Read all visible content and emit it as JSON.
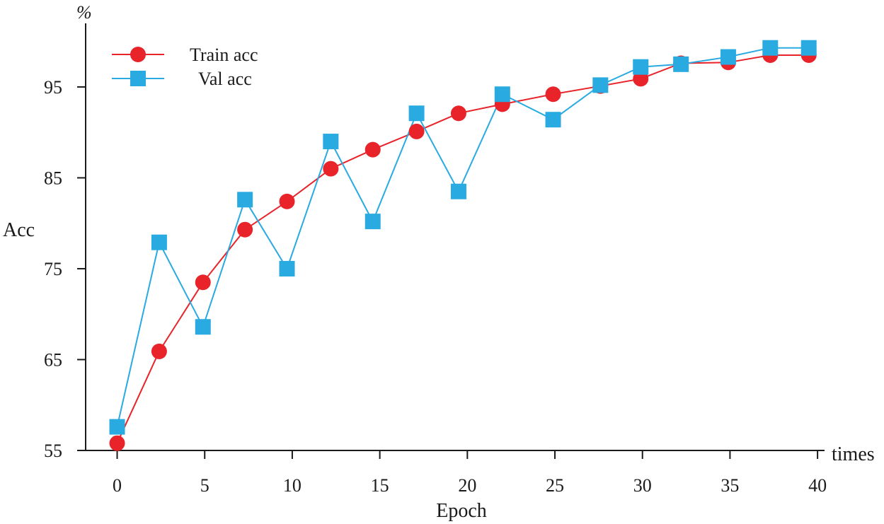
{
  "chart_data": {
    "type": "line",
    "title": "",
    "xlabel": "Epoch",
    "ylabel": "Acc",
    "y_unit": "%",
    "x_axis_end_label": "times",
    "xlim": [
      -1.8,
      40.4
    ],
    "ylim": [
      55,
      102
    ],
    "xticks": [
      0,
      5,
      10,
      15,
      20,
      25,
      30,
      35,
      40
    ],
    "xtick_labels": [
      "0",
      "5",
      "10",
      "15",
      "20",
      "25",
      "30",
      "35",
      "40"
    ],
    "yticks": [
      55,
      65,
      75,
      85,
      95
    ],
    "ytick_labels": [
      "55",
      "65",
      "75",
      "85",
      "95"
    ],
    "legend_position": "top-left",
    "series": [
      {
        "name": "Train acc",
        "color": "#e8232a",
        "marker": "circle",
        "x": [
          0,
          2.4,
          4.9,
          7.3,
          9.7,
          12.2,
          14.6,
          17.1,
          19.5,
          22.0,
          24.9,
          27.6,
          29.9,
          32.2,
          34.9,
          37.3,
          39.5
        ],
        "y": [
          55.8,
          65.9,
          73.5,
          79.3,
          82.4,
          86.0,
          88.1,
          90.1,
          92.1,
          93.1,
          94.2,
          95.1,
          95.9,
          97.6,
          97.7,
          98.5,
          98.5
        ]
      },
      {
        "name": "Val acc",
        "color": "#29aae1",
        "marker": "square",
        "x": [
          0,
          2.4,
          4.9,
          7.3,
          9.7,
          12.2,
          14.6,
          17.1,
          19.5,
          22.0,
          24.9,
          27.6,
          29.9,
          32.2,
          34.9,
          37.3,
          39.5
        ],
        "y": [
          57.6,
          77.9,
          68.6,
          82.6,
          75.0,
          89.0,
          80.2,
          92.1,
          83.5,
          94.2,
          91.4,
          95.2,
          97.2,
          97.5,
          98.3,
          99.3,
          99.3
        ]
      }
    ]
  }
}
